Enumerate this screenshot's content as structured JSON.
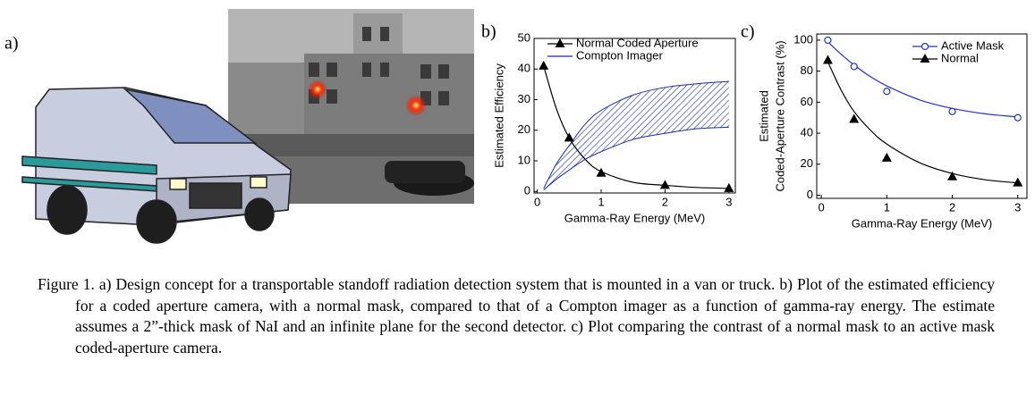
{
  "panel_labels": [
    "a)",
    "b)",
    "c)"
  ],
  "chart_data": [
    {
      "type": "line",
      "xlabel": "Gamma-Ray Energy (MeV)",
      "ylabel": [
        "Estimated Efficiency"
      ],
      "xlim": [
        -0.05,
        3.1
      ],
      "ylim": [
        -0.5,
        50
      ],
      "xticks": [
        0,
        1,
        2,
        3
      ],
      "yticks": [
        0,
        10,
        20,
        30,
        40,
        50
      ],
      "series": [
        {
          "name": "Normal Coded Aperture",
          "color": "#000000",
          "marker": "triangle-filled",
          "x": [
            0.1,
            0.5,
            1,
            2,
            3
          ],
          "values": [
            41,
            17.5,
            6,
            2,
            1
          ],
          "fit_x": [
            0.1,
            0.3,
            0.5,
            0.75,
            1,
            1.5,
            2,
            2.5,
            3
          ],
          "fit_values": [
            41,
            27,
            17.5,
            10.5,
            6.5,
            3,
            2,
            1.3,
            1
          ]
        },
        {
          "name": "Compton Imager",
          "color": "#1a2aa0",
          "x": [
            0.1,
            0.3,
            0.5,
            0.75,
            1,
            1.5,
            2,
            2.5,
            3
          ],
          "lower": [
            0.5,
            4,
            7,
            10.5,
            13,
            17,
            19,
            20.5,
            21
          ],
          "upper": [
            1,
            9,
            15,
            22,
            26.5,
            31.5,
            34,
            35.2,
            36
          ]
        }
      ]
    },
    {
      "type": "line",
      "xlabel": "Gamma-Ray Energy (MeV)",
      "ylabel": [
        "Estimated",
        "Coded-Aperture Contrast (%)"
      ],
      "xlim": [
        -0.07,
        3.14
      ],
      "ylim": [
        -2,
        104
      ],
      "xticks": [
        0,
        1,
        2,
        3
      ],
      "yticks": [
        0,
        20,
        40,
        60,
        80,
        100
      ],
      "series": [
        {
          "name": "Active Mask",
          "color": "#2233cc",
          "marker": "circle-open",
          "x": [
            0.1,
            0.5,
            1,
            2,
            3
          ],
          "values": [
            100,
            83,
            67,
            54,
            50
          ],
          "fit_x": [
            0.1,
            0.3,
            0.5,
            0.75,
            1,
            1.5,
            2,
            2.5,
            3
          ],
          "fit_values": [
            99,
            91,
            84,
            76.5,
            70.5,
            61.5,
            56,
            52.5,
            50.5
          ]
        },
        {
          "name": "Normal",
          "color": "#000000",
          "marker": "triangle-filled",
          "x": [
            0.1,
            0.5,
            1,
            2,
            3
          ],
          "values": [
            87,
            49,
            24,
            12,
            8
          ],
          "fit_x": [
            0.1,
            0.3,
            0.5,
            0.75,
            1,
            1.5,
            2,
            2.5,
            3
          ],
          "fit_values": [
            86,
            68,
            54,
            42,
            33,
            21,
            14,
            10,
            8
          ]
        }
      ]
    }
  ],
  "caption": "Figure 1. a) Design concept for a transportable standoff radiation detection system that is mounted in a van or truck.  b) Plot of the estimated efficiency for a coded aperture camera, with a normal mask, compared to that of a Compton imager as a function of gamma-ray energy.  The estimate assumes a 2”-thick mask of NaI and an infinite plane for the second detector. c) Plot comparing the contrast of a normal mask to an active mask coded-aperture camera."
}
